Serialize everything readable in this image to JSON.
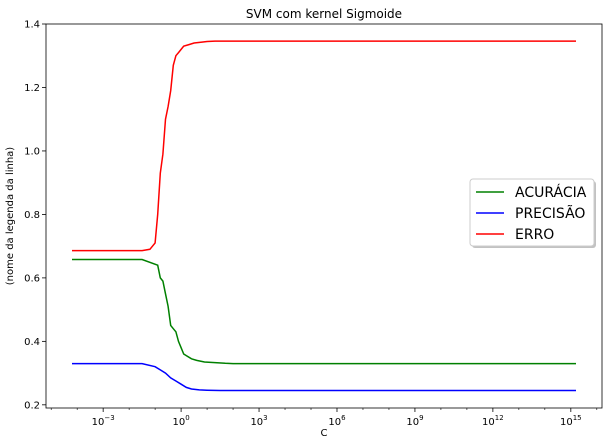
{
  "chart_data": {
    "type": "line",
    "title": "SVM com kernel Sigmoide",
    "xlabel": "C",
    "ylabel": "(nome da legenda da linha)",
    "xscale": "log",
    "xlim_log10": [
      -5.2,
      16.2
    ],
    "ylim": [
      0.19,
      1.4
    ],
    "xticks": [
      {
        "exp": -3,
        "base": "10",
        "sup": "−3"
      },
      {
        "exp": 0,
        "base": "10",
        "sup": "0"
      },
      {
        "exp": 3,
        "base": "10",
        "sup": "3"
      },
      {
        "exp": 6,
        "base": "10",
        "sup": "6"
      },
      {
        "exp": 9,
        "base": "10",
        "sup": "9"
      },
      {
        "exp": 12,
        "base": "10",
        "sup": "12"
      },
      {
        "exp": 15,
        "base": "10",
        "sup": "15"
      }
    ],
    "yticks": [
      {
        "value": 0.2,
        "label": "0.2"
      },
      {
        "value": 0.4,
        "label": "0.4"
      },
      {
        "value": 0.6,
        "label": "0.6"
      },
      {
        "value": 0.8,
        "label": "0.8"
      },
      {
        "value": 1.0,
        "label": "1.0"
      },
      {
        "value": 1.2,
        "label": "1.2"
      },
      {
        "value": 1.4,
        "label": "1.4"
      }
    ],
    "grid": false,
    "legend_position": "center-right",
    "series": [
      {
        "name": "ACURÁCIA",
        "color": "#008000",
        "log10_x": [
          -4.2,
          -1.5,
          -0.9,
          -0.8,
          -0.7,
          -0.6,
          -0.5,
          -0.4,
          -0.3,
          -0.2,
          -0.1,
          0.0,
          0.1,
          0.2,
          0.4,
          0.6,
          0.9,
          1.3,
          1.7,
          2.0,
          2.3,
          3.0,
          6.0,
          9.0,
          12.0,
          15.0,
          15.2
        ],
        "values": [
          0.658,
          0.658,
          0.64,
          0.6,
          0.59,
          0.55,
          0.51,
          0.45,
          0.44,
          0.43,
          0.4,
          0.38,
          0.36,
          0.355,
          0.345,
          0.34,
          0.335,
          0.333,
          0.331,
          0.33,
          0.33,
          0.33,
          0.33,
          0.33,
          0.33,
          0.33,
          0.33
        ]
      },
      {
        "name": "PRECISÃO",
        "color": "#0000ff",
        "log10_x": [
          -4.2,
          -1.5,
          -1.0,
          -0.8,
          -0.6,
          -0.4,
          -0.2,
          0.0,
          0.2,
          0.4,
          0.7,
          1.0,
          1.5,
          2.0,
          3.0,
          6.0,
          9.0,
          12.0,
          15.0,
          15.2
        ],
        "values": [
          0.33,
          0.33,
          0.32,
          0.31,
          0.3,
          0.285,
          0.275,
          0.265,
          0.255,
          0.25,
          0.247,
          0.246,
          0.245,
          0.245,
          0.245,
          0.245,
          0.245,
          0.245,
          0.245,
          0.245
        ]
      },
      {
        "name": "ERRO",
        "color": "#ff0000",
        "log10_x": [
          -4.2,
          -1.5,
          -1.2,
          -1.0,
          -0.9,
          -0.8,
          -0.7,
          -0.6,
          -0.5,
          -0.4,
          -0.3,
          -0.2,
          -0.1,
          0.0,
          0.1,
          0.3,
          0.5,
          0.8,
          1.0,
          1.3,
          1.7,
          2.0,
          3.0,
          6.0,
          9.0,
          12.0,
          15.0,
          15.2
        ],
        "values": [
          0.686,
          0.686,
          0.69,
          0.71,
          0.8,
          0.93,
          0.99,
          1.1,
          1.14,
          1.19,
          1.27,
          1.3,
          1.31,
          1.32,
          1.33,
          1.335,
          1.34,
          1.343,
          1.345,
          1.346,
          1.346,
          1.346,
          1.346,
          1.346,
          1.346,
          1.346,
          1.346,
          1.346
        ]
      }
    ]
  }
}
